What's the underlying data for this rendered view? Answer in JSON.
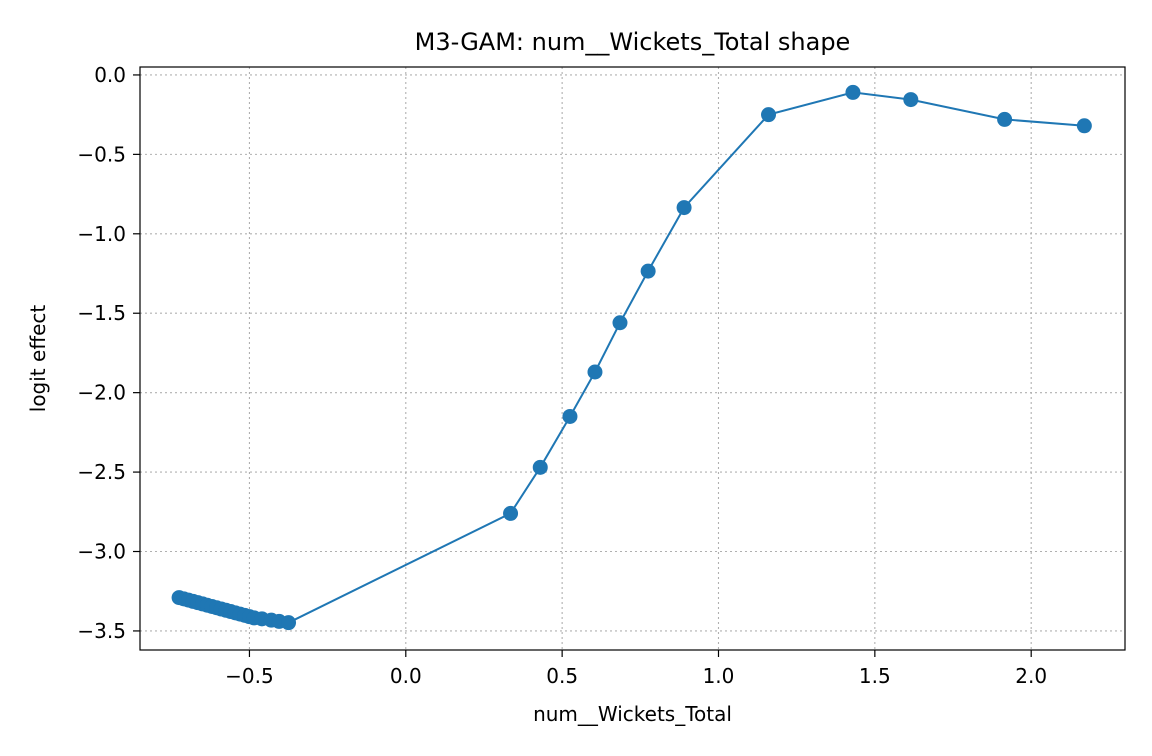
{
  "chart_data": {
    "type": "line",
    "title": "M3-GAM: num__Wickets_Total shape",
    "xlabel": "num__Wickets_Total",
    "ylabel": "logit effect",
    "xlim": [
      -0.85,
      2.3
    ],
    "ylim": [
      -3.62,
      0.05
    ],
    "grid": true,
    "line_color": "#1f77b4",
    "marker": "circle",
    "x_ticks": [
      {
        "value": -0.5,
        "label": "−0.5"
      },
      {
        "value": 0.0,
        "label": "0.0"
      },
      {
        "value": 0.5,
        "label": "0.5"
      },
      {
        "value": 1.0,
        "label": "1.0"
      },
      {
        "value": 1.5,
        "label": "1.5"
      },
      {
        "value": 2.0,
        "label": "2.0"
      }
    ],
    "y_ticks": [
      {
        "value": 0.0,
        "label": "0.0"
      },
      {
        "value": -0.5,
        "label": "−0.5"
      },
      {
        "value": -1.0,
        "label": "−1.0"
      },
      {
        "value": -1.5,
        "label": "−1.5"
      },
      {
        "value": -2.0,
        "label": "−2.0"
      },
      {
        "value": -2.5,
        "label": "−2.5"
      },
      {
        "value": -3.0,
        "label": "−3.0"
      },
      {
        "value": -3.5,
        "label": "−3.5"
      }
    ],
    "series": [
      {
        "x": [
          -0.725,
          -0.71,
          -0.695,
          -0.68,
          -0.665,
          -0.65,
          -0.635,
          -0.62,
          -0.605,
          -0.59,
          -0.575,
          -0.56,
          -0.545,
          -0.53,
          -0.515,
          -0.5,
          -0.485,
          -0.46,
          -0.43,
          -0.405,
          -0.375,
          0.335,
          0.43,
          0.525,
          0.605,
          0.685,
          0.775,
          0.89,
          1.16,
          1.43,
          1.615,
          1.915,
          2.17
        ],
        "y": [
          -3.29,
          -3.298,
          -3.306,
          -3.314,
          -3.322,
          -3.33,
          -3.338,
          -3.346,
          -3.354,
          -3.362,
          -3.37,
          -3.378,
          -3.386,
          -3.394,
          -3.402,
          -3.41,
          -3.418,
          -3.424,
          -3.432,
          -3.44,
          -3.448,
          -2.76,
          -2.47,
          -2.15,
          -1.87,
          -1.56,
          -1.235,
          -0.835,
          -0.25,
          -0.11,
          -0.155,
          -0.28,
          -0.32
        ]
      }
    ]
  }
}
